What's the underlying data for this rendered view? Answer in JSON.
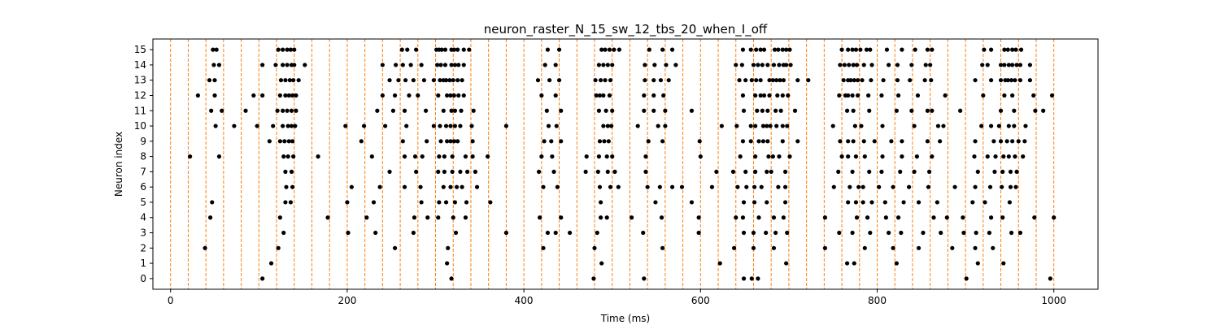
{
  "chart_data": {
    "type": "scatter",
    "title": "neuron_raster_N_15_sw_12_tbs_20_when_I_off",
    "xlabel": "Time (ms)",
    "ylabel": "Neuron index",
    "xlim": [
      -20,
      1050
    ],
    "ylim": [
      -0.7,
      15.7
    ],
    "xticks": [
      0,
      200,
      400,
      600,
      800,
      1000
    ],
    "yticks": [
      0,
      1,
      2,
      3,
      4,
      5,
      6,
      7,
      8,
      9,
      10,
      11,
      12,
      13,
      14,
      15
    ],
    "grid": false,
    "legend": "none",
    "marker_color": "#000000",
    "vline_color": "#ff7f0e",
    "vlines": [
      0,
      20,
      40,
      60,
      80,
      100,
      120,
      140,
      160,
      180,
      200,
      220,
      240,
      260,
      280,
      300,
      320,
      340,
      360,
      380,
      400,
      420,
      440,
      460,
      480,
      500,
      520,
      540,
      560,
      580,
      600,
      620,
      640,
      660,
      680,
      700,
      720,
      740,
      760,
      780,
      800,
      820,
      840,
      860,
      880,
      900,
      920,
      940,
      960,
      980,
      1000
    ],
    "spikes": [
      {
        "neuron": 15,
        "times": [
          48,
          52,
          122,
          127,
          132,
          136,
          140,
          262,
          268,
          278,
          301,
          304,
          307,
          311,
          318,
          321,
          325,
          332,
          338,
          427,
          440,
          488,
          492,
          497,
          502,
          508,
          542,
          557,
          568,
          648,
          657,
          663,
          668,
          672,
          684,
          688,
          693,
          697,
          701,
          760,
          767,
          772,
          776,
          781,
          788,
          792,
          811,
          828,
          843,
          857,
          862,
          921,
          929,
          944,
          948,
          953,
          957,
          963
        ]
      },
      {
        "neuron": 14,
        "times": [
          49,
          55,
          104,
          119,
          127,
          132,
          137,
          140,
          152,
          240,
          255,
          263,
          272,
          284,
          302,
          306,
          311,
          318,
          322,
          326,
          332,
          424,
          436,
          485,
          490,
          495,
          500,
          537,
          548,
          561,
          572,
          640,
          647,
          660,
          665,
          670,
          676,
          683,
          689,
          694,
          697,
          702,
          758,
          763,
          768,
          773,
          777,
          785,
          794,
          813,
          823,
          839,
          855,
          860,
          919,
          925,
          940,
          944,
          949,
          953,
          958,
          962,
          973
        ]
      },
      {
        "neuron": 13,
        "times": [
          44,
          50,
          125,
          130,
          135,
          139,
          145,
          248,
          258,
          266,
          275,
          287,
          298,
          305,
          309,
          312,
          316,
          320,
          325,
          330,
          416,
          429,
          440,
          481,
          487,
          492,
          498,
          537,
          547,
          555,
          564,
          644,
          651,
          658,
          663,
          668,
          678,
          682,
          686,
          690,
          694,
          710,
          722,
          762,
          767,
          770,
          774,
          778,
          783,
          793,
          807,
          823,
          837,
          854,
          861,
          911,
          929,
          940,
          945,
          948,
          952,
          956,
          962,
          973
        ]
      },
      {
        "neuron": 12,
        "times": [
          31,
          50,
          94,
          104,
          124,
          130,
          134,
          138,
          142,
          240,
          254,
          270,
          280,
          303,
          313,
          317,
          321,
          326,
          332,
          420,
          436,
          482,
          486,
          490,
          497,
          536,
          547,
          558,
          648,
          662,
          668,
          672,
          678,
          687,
          693,
          699,
          757,
          764,
          767,
          772,
          778,
          790,
          805,
          824,
          846,
          877,
          920,
          944,
          953,
          977,
          998
        ]
      },
      {
        "neuron": 11,
        "times": [
          46,
          58,
          85,
          121,
          127,
          132,
          137,
          142,
          234,
          252,
          265,
          289,
          309,
          318,
          322,
          329,
          343,
          426,
          442,
          485,
          493,
          500,
          536,
          547,
          560,
          590,
          649,
          664,
          670,
          676,
          685,
          691,
          707,
          766,
          773,
          791,
          822,
          839,
          857,
          862,
          894,
          940,
          955,
          979,
          988
        ]
      },
      {
        "neuron": 10,
        "times": [
          51,
          72,
          98,
          116,
          127,
          133,
          137,
          141,
          198,
          219,
          243,
          267,
          298,
          305,
          312,
          317,
          322,
          328,
          341,
          380,
          428,
          437,
          490,
          495,
          499,
          529,
          552,
          560,
          624,
          641,
          657,
          662,
          671,
          675,
          679,
          686,
          693,
          698,
          750,
          775,
          782,
          806,
          842,
          869,
          875,
          918,
          929,
          938,
          949,
          955,
          968
        ]
      },
      {
        "neuron": 9,
        "times": [
          112,
          124,
          129,
          134,
          138,
          216,
          263,
          290,
          306,
          313,
          317,
          321,
          325,
          342,
          423,
          431,
          442,
          486,
          491,
          496,
          541,
          557,
          599,
          648,
          657,
          666,
          671,
          676,
          693,
          710,
          758,
          767,
          773,
          785,
          797,
          816,
          828,
          857,
          871,
          911,
          932,
          940,
          947,
          953,
          960,
          967
        ]
      },
      {
        "neuron": 8,
        "times": [
          22,
          55,
          128,
          133,
          139,
          167,
          228,
          265,
          277,
          285,
          304,
          310,
          319,
          334,
          342,
          359,
          420,
          432,
          471,
          485,
          494,
          500,
          538,
          600,
          645,
          662,
          677,
          682,
          689,
          701,
          760,
          767,
          776,
          786,
          806,
          828,
          845,
          862,
          910,
          925,
          934,
          943,
          949,
          956,
          965
        ]
      },
      {
        "neuron": 7,
        "times": [
          130,
          137,
          248,
          278,
          303,
          310,
          319,
          328,
          336,
          345,
          417,
          434,
          470,
          484,
          495,
          503,
          538,
          618,
          637,
          651,
          662,
          675,
          680,
          696,
          756,
          772,
          791,
          805,
          826,
          842,
          859,
          914,
          933,
          942,
          951,
          958
        ]
      },
      {
        "neuron": 6,
        "times": [
          131,
          138,
          205,
          237,
          265,
          283,
          309,
          317,
          324,
          330,
          347,
          422,
          438,
          486,
          498,
          507,
          540,
          554,
          568,
          579,
          613,
          642,
          652,
          661,
          669,
          688,
          696,
          751,
          769,
          779,
          784,
          802,
          818,
          836,
          858,
          888,
          911,
          928,
          941,
          951,
          957
        ]
      },
      {
        "neuron": 5,
        "times": [
          47,
          130,
          136,
          200,
          230,
          284,
          304,
          312,
          322,
          335,
          362,
          487,
          549,
          590,
          649,
          661,
          675,
          696,
          767,
          776,
          784,
          794,
          809,
          830,
          847,
          868,
          908,
          922,
          950
        ]
      },
      {
        "neuron": 4,
        "times": [
          45,
          124,
          178,
          222,
          276,
          291,
          303,
          320,
          334,
          418,
          442,
          487,
          494,
          522,
          556,
          598,
          640,
          648,
          666,
          683,
          694,
          741,
          777,
          789,
          810,
          824,
          864,
          879,
          897,
          929,
          942,
          978,
          1000
        ]
      },
      {
        "neuron": 3,
        "times": [
          128,
          201,
          232,
          275,
          323,
          380,
          427,
          436,
          452,
          483,
          535,
          598,
          649,
          660,
          674,
          685,
          698,
          757,
          772,
          792,
          813,
          827,
          852,
          872,
          898,
          912,
          927,
          952,
          962
        ]
      },
      {
        "neuron": 2,
        "times": [
          39,
          122,
          254,
          314,
          422,
          480,
          557,
          638,
          660,
          683,
          741,
          786,
          818,
          847,
          885,
          911,
          931
        ]
      },
      {
        "neuron": 1,
        "times": [
          114,
          313,
          488,
          622,
          697,
          766,
          774,
          822,
          914,
          943
        ]
      },
      {
        "neuron": 0,
        "times": [
          104,
          318,
          479,
          536,
          649,
          658,
          665,
          901,
          996
        ]
      }
    ]
  }
}
